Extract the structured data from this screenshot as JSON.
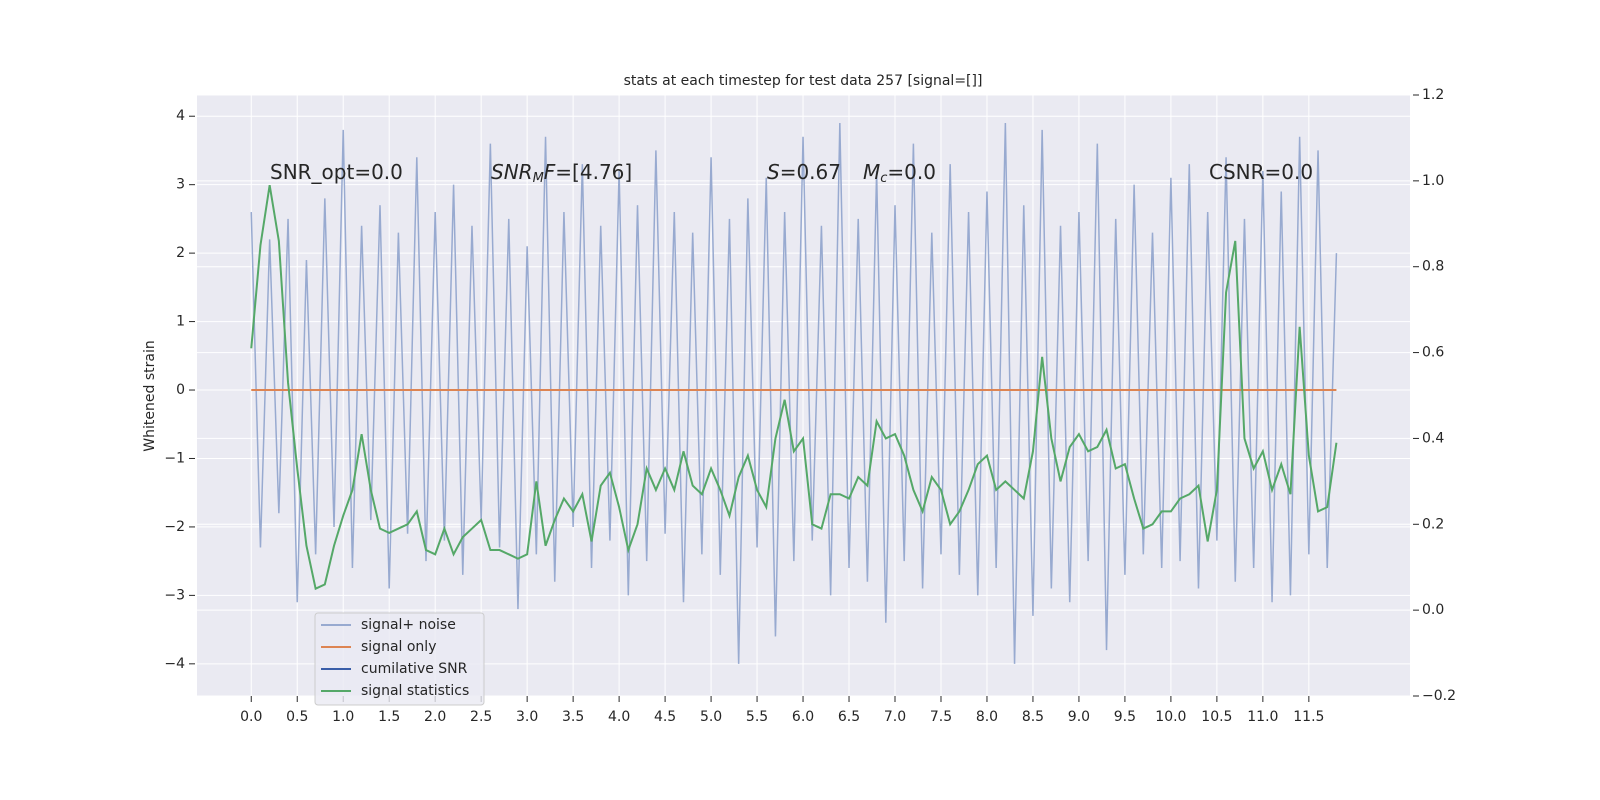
{
  "chart_data": {
    "type": "line",
    "title": "stats at each timestep for test data 257 [signal=[]]",
    "ylabel": "Whitened strain",
    "xlim": [
      -0.59,
      12.6
    ],
    "ylim": [
      -4.47,
      4.31
    ],
    "y2lim": [
      -0.2,
      1.2
    ],
    "xticks": [
      {
        "value": 0,
        "label": "0.0"
      },
      0.5,
      {
        "value": 1,
        "label": "1.0"
      },
      1.5,
      {
        "value": 2,
        "label": "2.0"
      },
      2.5,
      {
        "value": 3,
        "label": "3.0"
      },
      3.5,
      {
        "value": 4,
        "label": "4.0"
      },
      4.5,
      {
        "value": 5,
        "label": "5.0"
      },
      5.5,
      {
        "value": 6,
        "label": "6.0"
      },
      6.5,
      {
        "value": 7,
        "label": "7.0"
      },
      7.5,
      {
        "value": 8,
        "label": "8.0"
      },
      8.5,
      {
        "value": 9,
        "label": "9.0"
      },
      9.5,
      {
        "value": 10,
        "label": "10.0"
      },
      10.5,
      {
        "value": 11,
        "label": "11.0"
      },
      11.5
    ],
    "yticks": [
      {
        "value": -4,
        "label": "−4"
      },
      {
        "value": -3,
        "label": "−3"
      },
      {
        "value": -2,
        "label": "−2"
      },
      {
        "value": -1,
        "label": "−1"
      },
      0,
      1,
      2,
      3,
      4
    ],
    "y2ticks": [
      {
        "value": -0.2,
        "label": "−0.2"
      },
      {
        "value": 0,
        "label": "0.0"
      },
      0.2,
      0.4,
      0.6,
      0.8,
      {
        "value": 1,
        "label": "1.0"
      },
      1.2
    ],
    "grid": true,
    "legend": "lower left",
    "annotations": [
      [
        {
          "text": "SNR_opt=0.0",
          "style": "normal"
        }
      ],
      [
        {
          "text": "SNR",
          "style": "italic"
        },
        {
          "text": "M",
          "style": "sub"
        },
        {
          "text": "F",
          "style": "italic"
        },
        {
          "text": "=[4.76]",
          "style": "normal"
        }
      ],
      [
        {
          "text": "S",
          "style": "italic"
        },
        {
          "text": "=0.67",
          "style": "normal"
        },
        {
          "text": "M",
          "style": "italic"
        },
        {
          "text": "c",
          "style": "sub"
        },
        {
          "text": "=0.0",
          "style": "normal"
        }
      ],
      [
        {
          "text": "CSNR=0.0",
          "style": "normal"
        }
      ]
    ],
    "x": [
      0,
      0.1,
      0.2,
      0.3,
      0.4,
      0.5,
      0.6,
      0.7,
      0.8,
      0.9,
      1,
      1.1,
      1.2,
      1.3,
      1.4,
      1.5,
      1.6,
      1.7,
      1.8,
      1.9,
      2,
      2.1,
      2.2,
      2.3,
      2.4,
      2.5,
      2.6,
      2.7,
      2.8,
      2.9,
      3,
      3.1,
      3.2,
      3.3,
      3.4,
      3.5,
      3.6,
      3.7,
      3.8,
      3.9,
      4,
      4.1,
      4.2,
      4.3,
      4.4,
      4.5,
      4.6,
      4.7,
      4.8,
      4.9,
      5,
      5.1,
      5.2,
      5.3,
      5.4,
      5.5,
      5.6,
      5.7,
      5.8,
      5.9,
      6,
      6.1,
      6.2,
      6.3,
      6.4,
      6.5,
      6.6,
      6.7,
      6.8,
      6.9,
      7,
      7.1,
      7.2,
      7.3,
      7.4,
      7.5,
      7.6,
      7.7,
      7.8,
      7.9,
      8,
      8.1,
      8.2,
      8.3,
      8.4,
      8.5,
      8.6,
      8.7,
      8.8,
      8.9,
      9,
      9.1,
      9.2,
      9.3,
      9.4,
      9.5,
      9.6,
      9.7,
      9.8,
      9.9,
      10,
      10.1,
      10.2,
      10.3,
      10.4,
      10.5,
      10.6,
      10.7,
      10.8,
      10.9,
      11,
      11.1,
      11.2,
      11.3,
      11.4,
      11.5,
      11.6,
      11.7,
      11.8
    ],
    "series": [
      {
        "name": "signal+ noise",
        "color": "#98aad0",
        "axis": "y",
        "values": [
          2.6,
          -2.3,
          2.2,
          -1.8,
          2.5,
          -3.1,
          1.9,
          -2.4,
          2.8,
          -2.0,
          3.8,
          -2.6,
          2.4,
          -1.9,
          2.7,
          -2.9,
          2.3,
          -2.1,
          3.4,
          -2.5,
          2.6,
          -2.2,
          3.0,
          -2.7,
          2.4,
          -1.9,
          3.6,
          -2.3,
          2.5,
          -3.2,
          2.1,
          -2.4,
          3.7,
          -2.8,
          2.6,
          -2.0,
          3.3,
          -2.6,
          2.4,
          -2.2,
          3.2,
          -3.0,
          2.7,
          -2.5,
          3.5,
          -2.1,
          2.6,
          -3.1,
          2.3,
          -2.4,
          3.4,
          -2.7,
          2.5,
          -4.0,
          2.8,
          -2.3,
          3.1,
          -3.6,
          2.6,
          -2.5,
          3.7,
          -2.2,
          2.4,
          -3.0,
          3.9,
          -2.6,
          2.5,
          -2.8,
          3.2,
          -3.4,
          2.7,
          -2.5,
          3.6,
          -2.9,
          2.3,
          -2.4,
          3.3,
          -2.7,
          2.6,
          -3.0,
          2.9,
          -2.6,
          3.9,
          -4.0,
          2.7,
          -3.3,
          3.8,
          -2.9,
          2.4,
          -3.1,
          2.6,
          -2.5,
          3.6,
          -3.8,
          2.5,
          -2.7,
          3.0,
          -2.4,
          2.3,
          -2.6,
          3.1,
          -2.5,
          3.3,
          -2.9,
          2.6,
          -2.2,
          3.4,
          -2.8,
          2.5,
          -2.6,
          3.2,
          -3.1,
          2.9,
          -3.0,
          3.7,
          -2.4,
          3.5,
          -2.6,
          2.0
        ]
      },
      {
        "name": "signal only",
        "color": "#dd8452",
        "axis": "y",
        "values": [
          0,
          0,
          0,
          0,
          0,
          0,
          0,
          0,
          0,
          0,
          0,
          0,
          0,
          0,
          0,
          0,
          0,
          0,
          0,
          0,
          0,
          0,
          0,
          0,
          0,
          0,
          0,
          0,
          0,
          0,
          0,
          0,
          0,
          0,
          0,
          0,
          0,
          0,
          0,
          0,
          0,
          0,
          0,
          0,
          0,
          0,
          0,
          0,
          0,
          0,
          0,
          0,
          0,
          0,
          0,
          0,
          0,
          0,
          0,
          0,
          0,
          0,
          0,
          0,
          0,
          0,
          0,
          0,
          0,
          0,
          0,
          0,
          0,
          0,
          0,
          0,
          0,
          0,
          0,
          0,
          0,
          0,
          0,
          0,
          0,
          0,
          0,
          0,
          0,
          0,
          0,
          0,
          0,
          0,
          0,
          0,
          0,
          0,
          0,
          0,
          0,
          0,
          0,
          0,
          0,
          0,
          0,
          0,
          0,
          0,
          0,
          0,
          0,
          0,
          0,
          0,
          0,
          0,
          0
        ]
      },
      {
        "name": "cumilative SNR",
        "color": "#3a5ea8",
        "axis": "y"
      },
      {
        "name": "signal statistics",
        "color": "#55a868",
        "axis": "y2",
        "values": [
          0.61,
          0.85,
          0.99,
          0.86,
          0.53,
          0.33,
          0.15,
          0.05,
          0.06,
          0.15,
          0.22,
          0.28,
          0.41,
          0.28,
          0.19,
          0.18,
          0.19,
          0.2,
          0.23,
          0.14,
          0.13,
          0.19,
          0.13,
          0.17,
          0.19,
          0.21,
          0.14,
          0.14,
          0.13,
          0.12,
          0.13,
          0.3,
          0.15,
          0.21,
          0.26,
          0.23,
          0.27,
          0.16,
          0.29,
          0.32,
          0.24,
          0.14,
          0.2,
          0.33,
          0.28,
          0.33,
          0.28,
          0.37,
          0.29,
          0.27,
          0.33,
          0.28,
          0.22,
          0.31,
          0.36,
          0.28,
          0.24,
          0.4,
          0.49,
          0.37,
          0.4,
          0.2,
          0.19,
          0.27,
          0.27,
          0.26,
          0.31,
          0.29,
          0.44,
          0.4,
          0.41,
          0.36,
          0.28,
          0.23,
          0.31,
          0.28,
          0.2,
          0.23,
          0.28,
          0.34,
          0.36,
          0.28,
          0.3,
          0.28,
          0.26,
          0.37,
          0.59,
          0.4,
          0.3,
          0.38,
          0.41,
          0.37,
          0.38,
          0.42,
          0.33,
          0.34,
          0.26,
          0.19,
          0.2,
          0.23,
          0.23,
          0.26,
          0.27,
          0.29,
          0.16,
          0.28,
          0.74,
          0.86,
          0.4,
          0.33,
          0.37,
          0.28,
          0.34,
          0.27,
          0.66,
          0.36,
          0.23,
          0.24,
          0.39
        ]
      }
    ]
  }
}
